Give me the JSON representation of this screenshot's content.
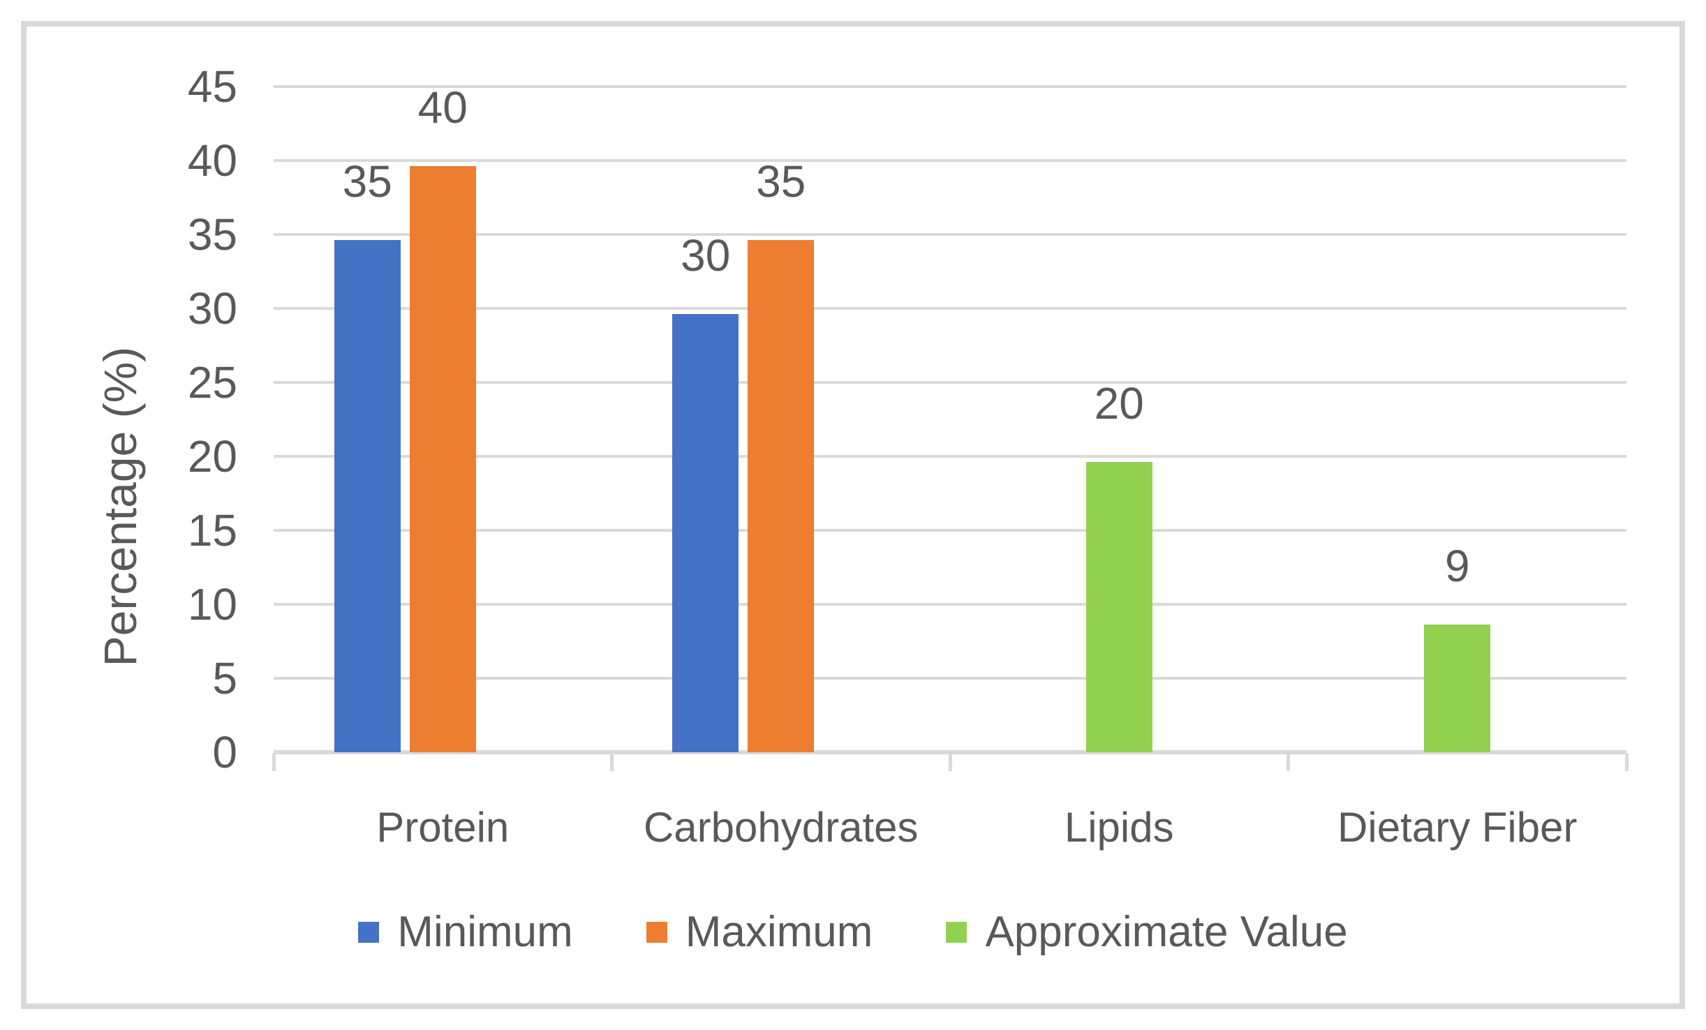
{
  "palette": {
    "frame_border": "#D9D9D9",
    "gridline": "#D9D9D9",
    "axis_line": "#D9D9D9",
    "text": "#595959",
    "background": "#FFFFFF"
  },
  "chart_data": {
    "type": "bar",
    "title": "",
    "categories": [
      "Protein",
      "Carbohydrates",
      "Lipids",
      "Dietary Fiber"
    ],
    "series": [
      {
        "name": "Minimum",
        "color": "#4472C4",
        "values": [
          35,
          30,
          null,
          null
        ]
      },
      {
        "name": "Maximum",
        "color": "#ED7D31",
        "values": [
          40,
          35,
          null,
          null
        ]
      },
      {
        "name": "Approximate Value",
        "color": "#92D050",
        "values": [
          null,
          null,
          20,
          9
        ]
      }
    ],
    "xlabel": "",
    "ylabel": "Percentage (%)",
    "ylim": [
      0,
      45
    ],
    "yticks": [
      0,
      5,
      10,
      15,
      20,
      25,
      30,
      35,
      40,
      45
    ],
    "grid": "horizontal",
    "data_labels": true,
    "legend_position": "bottom"
  }
}
